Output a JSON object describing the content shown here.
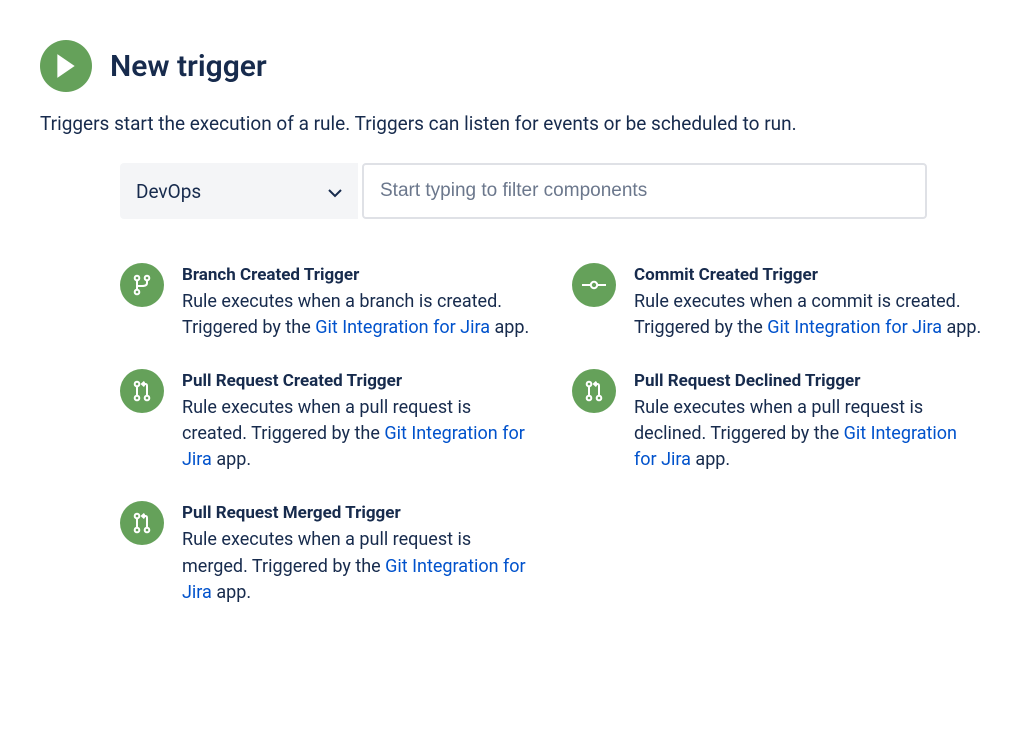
{
  "header": {
    "title": "New trigger",
    "subtitle": "Triggers start the execution of a rule. Triggers can listen for events or be scheduled to run."
  },
  "controls": {
    "select_value": "DevOps",
    "filter_placeholder": "Start typing to filter components"
  },
  "colors": {
    "icon_bg": "#65a15a",
    "icon_fg": "#ffffff",
    "link": "#0052cc",
    "text": "#172B4D",
    "select_bg": "#f4f5f7",
    "input_border": "#dfe1e6"
  },
  "link_label": "Git Integration for Jira",
  "triggers": [
    {
      "icon": "branch",
      "title": "Branch Created Trigger",
      "desc_before": "Rule executes when a branch is created. Triggered by the ",
      "desc_after": " app."
    },
    {
      "icon": "commit",
      "title": "Commit Created Trigger",
      "desc_before": "Rule executes when a commit is created. Triggered by the ",
      "desc_after": " app."
    },
    {
      "icon": "pr",
      "title": "Pull Request Created Trigger",
      "desc_before": "Rule executes when a pull request is created. Triggered by the ",
      "desc_after": " app."
    },
    {
      "icon": "pr",
      "title": "Pull Request Declined Trigger",
      "desc_before": "Rule executes when a pull request is declined. Triggered by the ",
      "desc_after": " app."
    },
    {
      "icon": "pr",
      "title": "Pull Request Merged Trigger",
      "desc_before": "Rule executes when a pull request is merged. Triggered by the ",
      "desc_after": " app."
    }
  ]
}
